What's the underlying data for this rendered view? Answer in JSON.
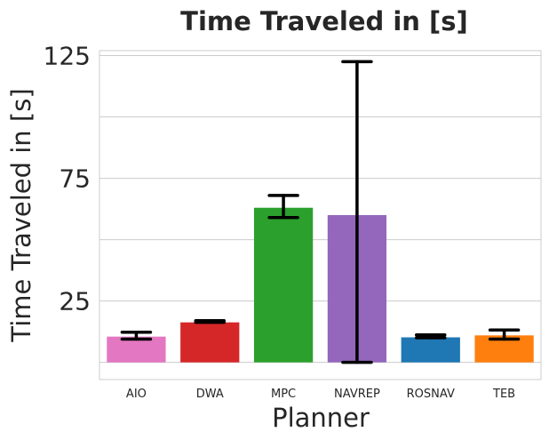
{
  "chart_data": {
    "type": "bar",
    "title": "Time Traveled in [s]",
    "xlabel": "Planner",
    "ylabel": "Time Traveled in [s]",
    "categories": [
      "AIO",
      "DWA",
      "MPC",
      "NAVREP",
      "ROSNAV",
      "TEB"
    ],
    "values": [
      10.5,
      16.3,
      63.0,
      60.0,
      10.2,
      11.0
    ],
    "error_low": [
      9.5,
      16.3,
      59.0,
      0.0,
      10.0,
      9.5
    ],
    "error_high": [
      12.3,
      17.0,
      68.0,
      122.5,
      11.2,
      13.2
    ],
    "colors": [
      "#e377c2",
      "#d62728",
      "#2ca02c",
      "#9467bd",
      "#1f77b4",
      "#ff7f0e"
    ],
    "yticks": [
      25,
      75,
      125
    ],
    "ylim": [
      -7,
      127
    ],
    "grid": true
  }
}
